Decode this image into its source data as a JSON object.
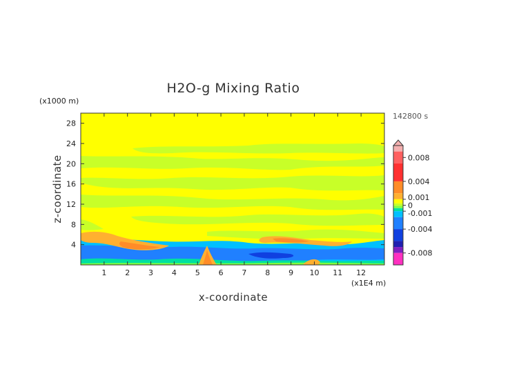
{
  "chart_data": {
    "type": "heatmap",
    "title": "H2O-g Mixing Ratio",
    "xlabel": "x-coordinate",
    "ylabel": "z-coordinate",
    "x_unit_label": "(x1E4 m)",
    "y_unit_label": "(x1000 m)",
    "time_label": "142800 s",
    "xlim": [
      0,
      13.0
    ],
    "ylim": [
      0,
      30
    ],
    "x_ticks": [
      "1",
      "2",
      "3",
      "4",
      "5",
      "6",
      "7",
      "8",
      "9",
      "10",
      "11",
      "12"
    ],
    "y_ticks": [
      "4",
      "8",
      "12",
      "16",
      "20",
      "24",
      "28"
    ],
    "colorbar": {
      "min": -0.01,
      "max": 0.01,
      "tick_labels": [
        {
          "label": "0.008",
          "value": 0.008
        },
        {
          "label": "0.004",
          "value": 0.004
        },
        {
          "label": "0.001",
          "value": 0.001
        },
        {
          "label": "0",
          "value": 0
        },
        {
          "label": "-0.001",
          "value": -0.001
        },
        {
          "label": "-0.004",
          "value": -0.004
        },
        {
          "label": "-0.008",
          "value": -0.008
        }
      ],
      "colors": {
        "very_high": "#f4b0b0",
        "high": "#ff6060",
        "mid_high": "#ff3030",
        "warm": "#ff8c28",
        "orange": "#ffb030",
        "yellow": "#ffff00",
        "light_green": "#c8ff28",
        "green": "#80ff40",
        "teal": "#00e0a0",
        "cyan": "#00c0ff",
        "blue": "#2080ff",
        "dark_blue": "#1040e0",
        "navy": "#2020b0",
        "purple": "#8020c0",
        "magenta": "#ff30c0"
      }
    },
    "regions": [
      {
        "name": "background",
        "value": 0.0
      },
      {
        "name": "upper-green-bands",
        "value": 0.0005
      },
      {
        "name": "lower-blue-layer",
        "value": -0.002
      },
      {
        "name": "orange-ridges",
        "value": 0.001
      },
      {
        "name": "central-peak",
        "value": 0.002
      }
    ]
  }
}
